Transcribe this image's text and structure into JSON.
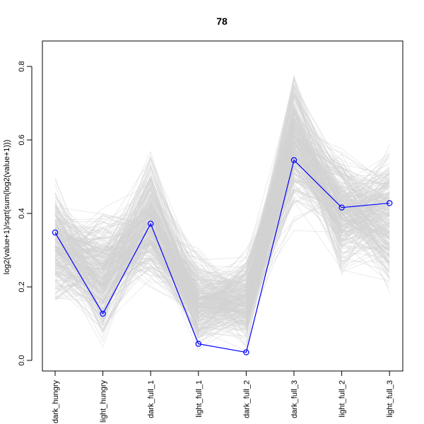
{
  "chart_data": {
    "type": "line",
    "title": "78",
    "xlabel": "",
    "ylabel": "log2(value+1)/sqrt(sum(log2(value+1)))",
    "categories": [
      "dark_hungry",
      "light_hungry",
      "dark_full_1",
      "light_full_1",
      "dark_full_2",
      "dark_full_3",
      "light_full_2",
      "light_full_3"
    ],
    "ylim": [
      -0.03,
      0.85
    ],
    "yticks": [
      0.0,
      0.2,
      0.4,
      0.6,
      0.8
    ],
    "ytick_labels": [
      "0.0",
      "0.2",
      "0.4",
      "0.6",
      "0.8"
    ],
    "grid": false,
    "legend": "none",
    "colors": {
      "highlight": "#0000ff",
      "background_lines": "#d3d3d3"
    },
    "series": [
      {
        "values": [
          0.348,
          0.127,
          0.372,
          0.045,
          0.022,
          0.545,
          0.416,
          0.428
        ]
      }
    ],
    "background_profiles": {
      "count": 300,
      "ranges": [
        [
          0.1,
          0.53
        ],
        [
          0.0,
          0.46
        ],
        [
          0.17,
          0.59
        ],
        [
          0.0,
          0.33
        ],
        [
          0.0,
          0.33
        ],
        [
          0.34,
          0.84
        ],
        [
          0.2,
          0.61
        ],
        [
          0.15,
          0.62
        ]
      ]
    }
  }
}
